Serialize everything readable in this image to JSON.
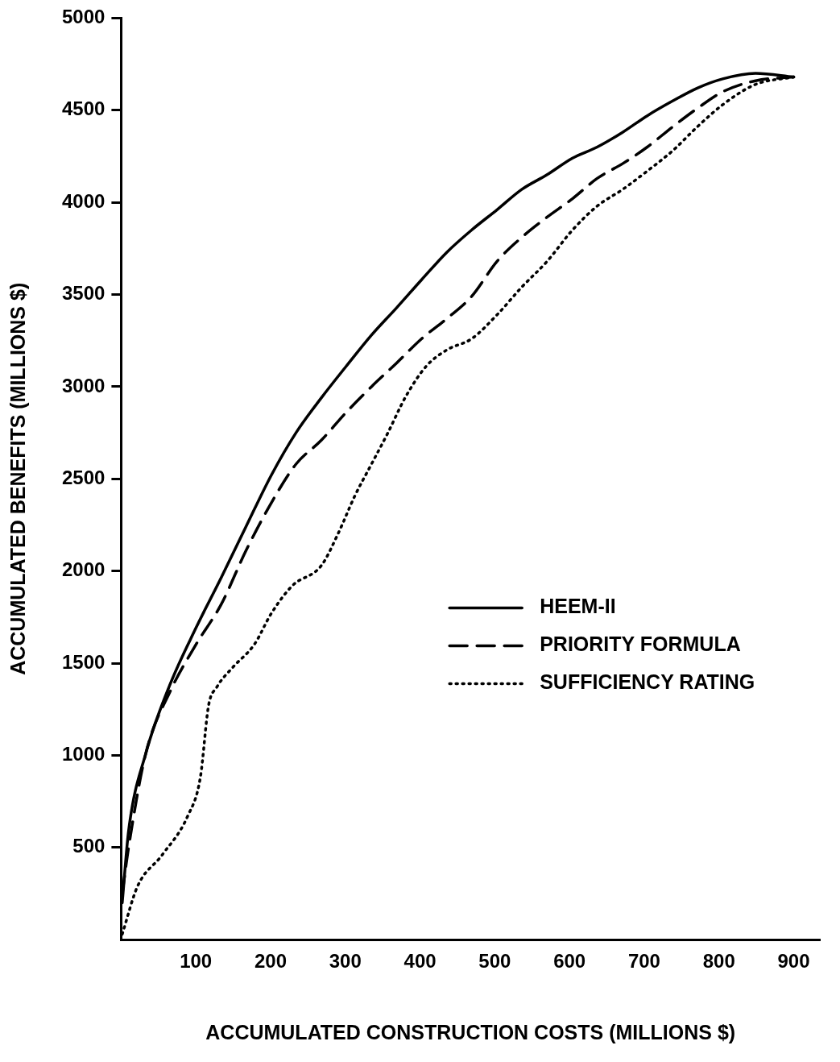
{
  "chart_data": {
    "type": "line",
    "xlabel": "ACCUMULATED CONSTRUCTION COSTS (MILLIONS $)",
    "ylabel": "ACCUMULATED BENEFITS (MILLIONS $)",
    "xlim": [
      0,
      935
    ],
    "ylim": [
      0,
      5000
    ],
    "xticks": [
      100,
      200,
      300,
      400,
      500,
      600,
      700,
      800,
      900
    ],
    "yticks": [
      500,
      1000,
      1500,
      2000,
      2500,
      3000,
      3500,
      4000,
      4500,
      5000
    ],
    "grid": false,
    "legend": "right",
    "marker": "none",
    "series": [
      {
        "name": "HEEM-II",
        "color": "#000000",
        "line_style": "solid",
        "x": [
          1.5,
          10,
          33,
          66,
          100,
          134,
          167,
          201,
          234,
          268,
          301,
          335,
          369,
          402,
          436,
          469,
          503,
          536,
          570,
          604,
          637,
          671,
          704,
          738,
          771,
          805,
          849,
          900
        ],
        "values": [
          200,
          590,
          1010,
          1390,
          1690,
          1965,
          2240,
          2520,
          2750,
          2940,
          3110,
          3280,
          3430,
          3580,
          3730,
          3850,
          3960,
          4070,
          4150,
          4240,
          4300,
          4380,
          4470,
          4550,
          4620,
          4670,
          4700,
          4680
        ]
      },
      {
        "name": "PRIORITY FORMULA",
        "color": "#000000",
        "line_style": "dashed",
        "x": [
          1.5,
          10,
          33,
          66,
          100,
          134,
          167,
          201,
          234,
          268,
          301,
          335,
          369,
          402,
          436,
          469,
          503,
          536,
          570,
          604,
          637,
          671,
          704,
          738,
          771,
          805,
          849,
          900
        ],
        "values": [
          250,
          500,
          1010,
          1350,
          1600,
          1820,
          2110,
          2370,
          2580,
          2710,
          2860,
          3000,
          3130,
          3260,
          3370,
          3490,
          3680,
          3810,
          3920,
          4020,
          4130,
          4210,
          4300,
          4410,
          4510,
          4600,
          4660,
          4680
        ]
      },
      {
        "name": "SUFFICIENCY RATING",
        "color": "#000000",
        "line_style": "dotted",
        "x": [
          1.5,
          22,
          55,
          89,
          106,
          117,
          128,
          150,
          178,
          201,
          229,
          268,
          290,
          313,
          335,
          357,
          380,
          408,
          436,
          469,
          503,
          536,
          570,
          604,
          637,
          671,
          704,
          738,
          771,
          805,
          849,
          900
        ],
        "values": [
          30,
          290,
          460,
          670,
          880,
          1270,
          1370,
          1480,
          1600,
          1770,
          1920,
          2030,
          2200,
          2410,
          2580,
          2750,
          2940,
          3110,
          3200,
          3260,
          3390,
          3540,
          3680,
          3850,
          3980,
          4070,
          4170,
          4280,
          4410,
          4530,
          4640,
          4680
        ]
      }
    ]
  }
}
